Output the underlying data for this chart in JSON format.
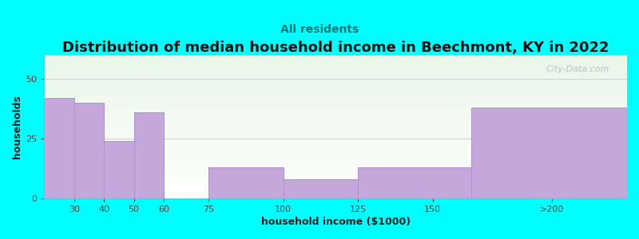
{
  "title": "Distribution of median household income in Beechmont, KY in 2022",
  "subtitle": "All residents",
  "xlabel": "household income ($1000)",
  "ylabel": "households",
  "background_color": "#00FFFF",
  "bar_color": "#C4A8DC",
  "bar_edge_color": "#B090CC",
  "values": [
    42,
    40,
    24,
    36,
    0,
    13,
    8,
    13,
    38
  ],
  "bar_lefts": [
    20,
    30,
    40,
    50,
    60,
    75,
    100,
    125,
    163
  ],
  "bar_rights": [
    30,
    40,
    50,
    60,
    75,
    100,
    125,
    163,
    215
  ],
  "xlim": [
    20,
    215
  ],
  "ylim": [
    0,
    60
  ],
  "yticks": [
    0,
    25,
    50
  ],
  "xtick_labels": [
    "30",
    "40",
    "50",
    "60",
    "75",
    "100",
    "125",
    "150",
    ">200"
  ],
  "xtick_positions": [
    30,
    40,
    50,
    60,
    75,
    100,
    125,
    150,
    190
  ],
  "title_fontsize": 13,
  "subtitle_fontsize": 10,
  "axis_label_fontsize": 9,
  "tick_fontsize": 8,
  "watermark": "City-Data.com"
}
